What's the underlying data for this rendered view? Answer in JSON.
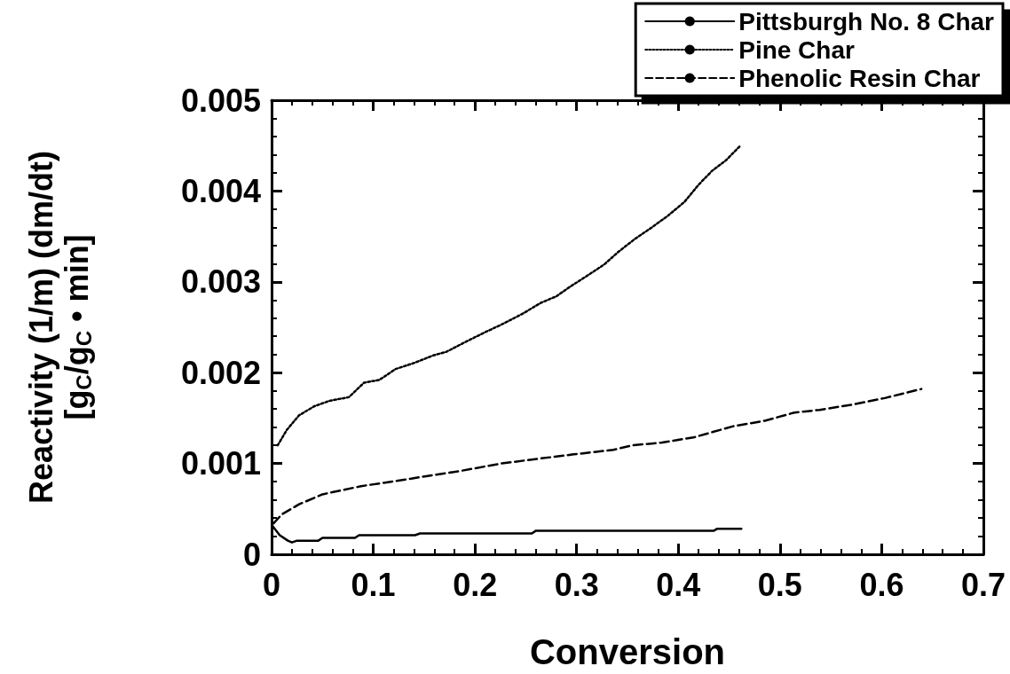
{
  "chart_data": {
    "type": "line",
    "xlabel": "Conversion",
    "ylabel": "Reactivity (1/m) (dm/dt)\n[g$_{C}$/g$_{C}$ • min]",
    "xlim": [
      0,
      0.7
    ],
    "xticks": [
      0,
      0.1,
      0.2,
      0.3,
      0.4,
      0.5,
      0.6,
      0.7
    ],
    "ylim": [
      0,
      0.005
    ],
    "yticks": [
      0,
      0.001,
      0.002,
      0.003,
      0.004,
      0.005
    ],
    "grid": false,
    "legend": "top right",
    "marker": "none",
    "series": [
      {
        "name": "Pittsburgh No. 8 Char",
        "color": "#000000",
        "line_style": "solid",
        "x": [
          0.001,
          0.008,
          0.016,
          0.02,
          0.025,
          0.046,
          0.05,
          0.082,
          0.086,
          0.141,
          0.146,
          0.256,
          0.26,
          0.435,
          0.438,
          0.462
        ],
        "values": [
          0.00031,
          0.00021,
          0.00015,
          0.00013,
          0.00015,
          0.00015,
          0.00018,
          0.00018,
          0.00021,
          0.00021,
          0.00023,
          0.00023,
          0.00026,
          0.00026,
          0.00028,
          0.00028
        ]
      },
      {
        "name": "Pine Char",
        "color": "#000000",
        "line_style": "dotted",
        "x": [
          0.006,
          0.015,
          0.027,
          0.042,
          0.057,
          0.076,
          0.091,
          0.106,
          0.122,
          0.141,
          0.159,
          0.172,
          0.191,
          0.209,
          0.228,
          0.247,
          0.265,
          0.28,
          0.294,
          0.308,
          0.327,
          0.341,
          0.357,
          0.374,
          0.39,
          0.406,
          0.42,
          0.433,
          0.447,
          0.461
        ],
        "values": [
          0.0012,
          0.00137,
          0.00153,
          0.00163,
          0.00169,
          0.00173,
          0.00189,
          0.00192,
          0.00204,
          0.00211,
          0.00219,
          0.00223,
          0.00234,
          0.00244,
          0.00254,
          0.00265,
          0.00277,
          0.00284,
          0.00295,
          0.00305,
          0.00319,
          0.00333,
          0.00347,
          0.0036,
          0.00373,
          0.00388,
          0.00407,
          0.00422,
          0.00434,
          0.0045
        ]
      },
      {
        "name": "Phenolic Resin Char",
        "color": "#000000",
        "line_style": "dashed",
        "x": [
          0.002,
          0.01,
          0.027,
          0.05,
          0.088,
          0.13,
          0.152,
          0.187,
          0.226,
          0.261,
          0.297,
          0.336,
          0.355,
          0.384,
          0.416,
          0.454,
          0.485,
          0.514,
          0.539,
          0.572,
          0.603,
          0.628,
          0.639
        ],
        "values": [
          0.00034,
          0.00044,
          0.00055,
          0.00066,
          0.00075,
          0.00082,
          0.00086,
          0.00092,
          0.001,
          0.00105,
          0.0011,
          0.00115,
          0.0012,
          0.00123,
          0.00129,
          0.00141,
          0.00147,
          0.00156,
          0.00159,
          0.00165,
          0.00172,
          0.00179,
          0.00182
        ]
      }
    ]
  }
}
